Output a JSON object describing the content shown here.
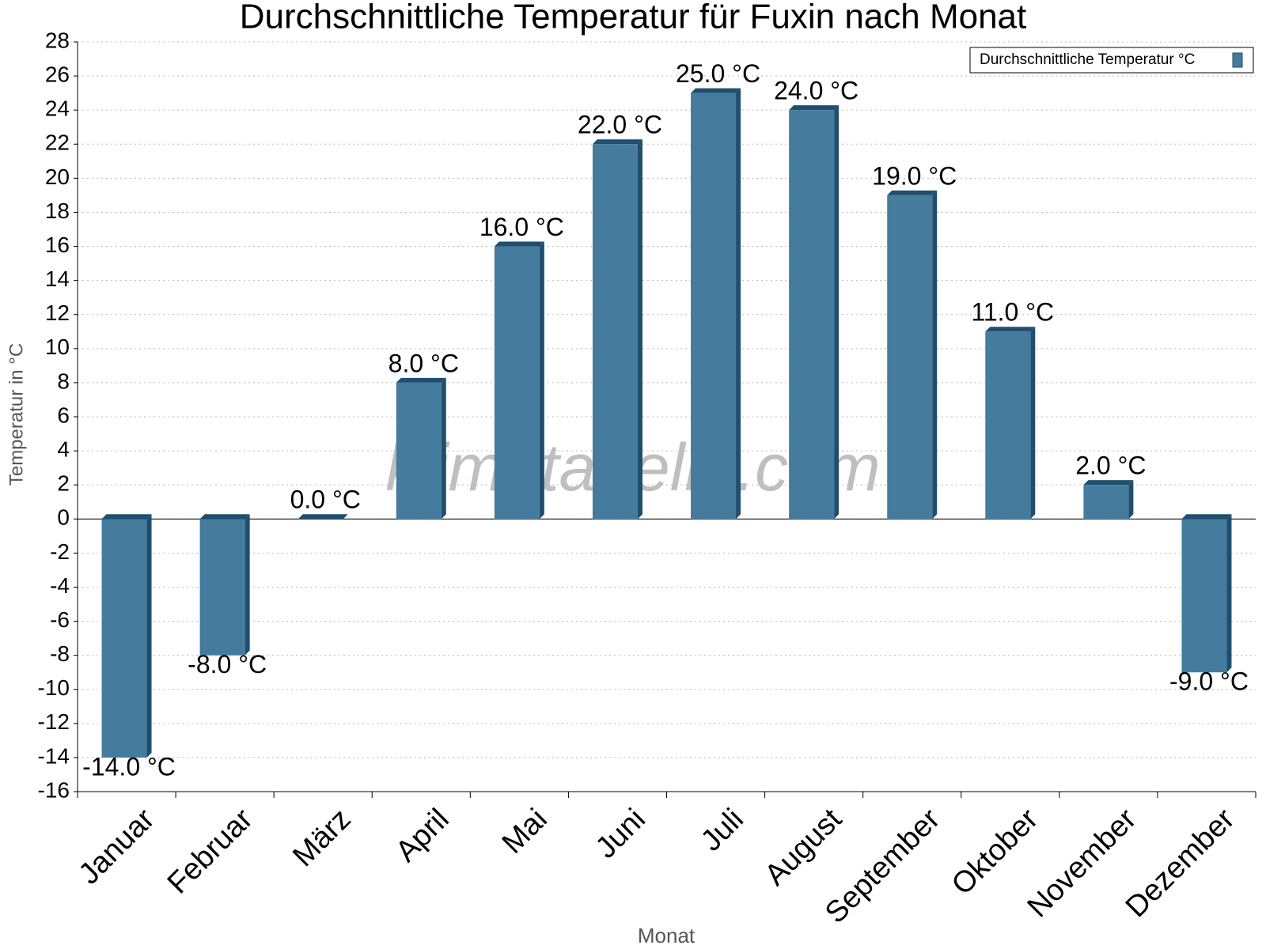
{
  "chart_data": {
    "type": "bar",
    "title": "Durchschnittliche Temperatur für Fuxin nach Monat",
    "x_label": "Monat",
    "y_label": "Temperatur in °C",
    "watermark": "klimatabelle.com",
    "categories": [
      "Januar",
      "Februar",
      "März",
      "April",
      "Mai",
      "Juni",
      "Juli",
      "August",
      "September",
      "Oktober",
      "November",
      "Dezember"
    ],
    "series": [
      {
        "name": "Durchschnittliche Temperatur °C",
        "color": "#457b9d",
        "values": [
          -14,
          -8,
          0,
          8,
          16,
          22,
          25,
          24,
          19,
          11,
          2,
          -9
        ],
        "value_labels": [
          "-14.0 °C",
          "-8.0 °C",
          "0.0 °C",
          "8.0 °C",
          "16.0 °C",
          "22.0 °C",
          "25.0 °C",
          "24.0 °C",
          "19.0 °C",
          "11.0 °C",
          "2.0 °C",
          "-9.0 °C"
        ]
      }
    ],
    "ylim": [
      -16,
      28
    ],
    "yticks": [
      -16,
      -14,
      -12,
      -10,
      -8,
      -6,
      -4,
      -2,
      0,
      2,
      4,
      6,
      8,
      10,
      12,
      14,
      16,
      18,
      20,
      22,
      24,
      26,
      28
    ],
    "grid": true,
    "legend": "top-right"
  }
}
